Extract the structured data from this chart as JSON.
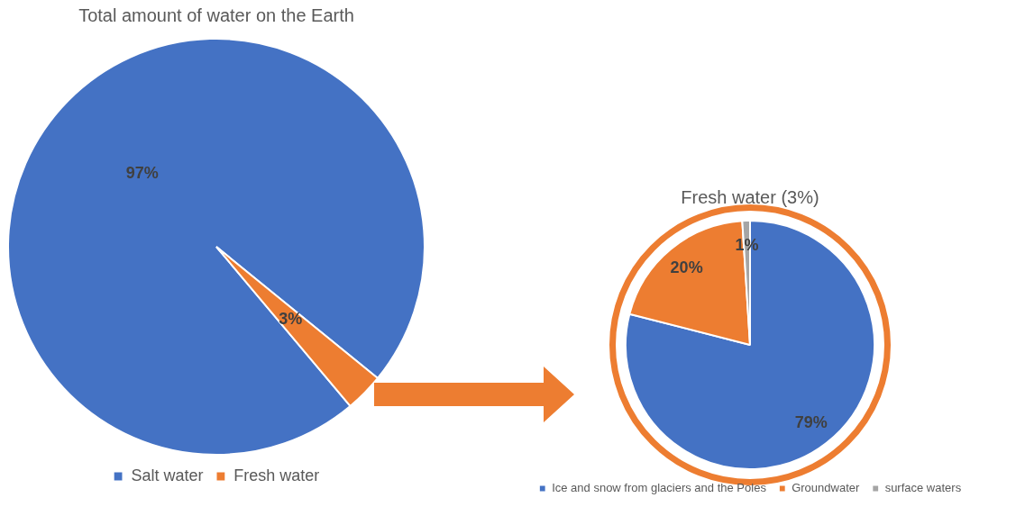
{
  "chart_data": [
    {
      "type": "pie",
      "title": "Total amount of water on the Earth",
      "categories": [
        "Salt water",
        "Fresh water"
      ],
      "values": [
        97,
        3
      ],
      "colors": [
        "#4472c4",
        "#ed7d31"
      ],
      "legend": "bottom",
      "value_labels": [
        "97%",
        "3%"
      ]
    },
    {
      "type": "pie",
      "title": "Fresh water (3%)",
      "categories": [
        "Ice and snow from glaciers and the Poles",
        "Groundwater",
        "surface waters"
      ],
      "values": [
        79,
        20,
        1
      ],
      "colors": [
        "#4472c4",
        "#ed7d31",
        "#a5a5a5"
      ],
      "legend": "bottom",
      "value_labels": [
        "79%",
        "20%",
        "1%"
      ]
    }
  ]
}
